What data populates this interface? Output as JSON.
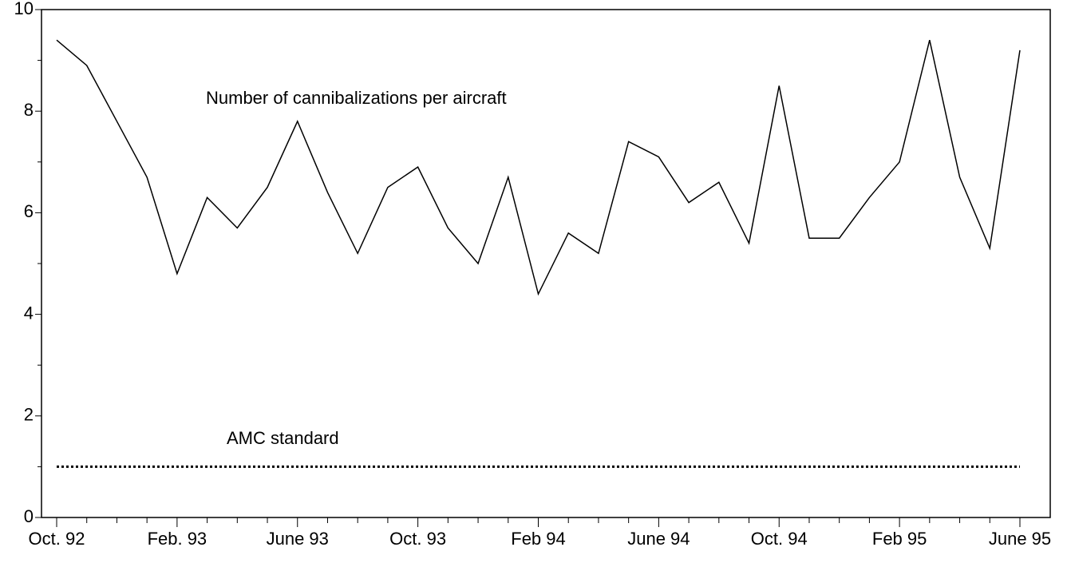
{
  "chart_data": {
    "type": "line",
    "categories": [
      "Oct. 92",
      null,
      null,
      null,
      "Feb. 93",
      null,
      null,
      null,
      "June 93",
      null,
      null,
      null,
      "Oct. 93",
      null,
      null,
      null,
      "Feb 94",
      null,
      null,
      null,
      "June 94",
      null,
      null,
      null,
      "Oct. 94",
      null,
      null,
      null,
      "Feb 95",
      null,
      null,
      null,
      "June 95"
    ],
    "series": [
      {
        "name": "Number of cannibalizations per aircraft",
        "color": "#000000",
        "style": "solid",
        "values": [
          9.4,
          8.9,
          7.8,
          6.7,
          4.8,
          6.3,
          5.7,
          6.5,
          7.8,
          6.4,
          5.2,
          6.5,
          6.9,
          5.7,
          5.0,
          6.7,
          4.4,
          5.6,
          5.2,
          7.4,
          7.1,
          6.2,
          6.6,
          5.4,
          8.5,
          5.5,
          5.5,
          6.3,
          7.0,
          9.4,
          6.7,
          5.3,
          9.2
        ]
      },
      {
        "name": "AMC standard",
        "color": "#000000",
        "style": "dotted",
        "values": [
          1,
          1,
          1,
          1,
          1,
          1,
          1,
          1,
          1,
          1,
          1,
          1,
          1,
          1,
          1,
          1,
          1,
          1,
          1,
          1,
          1,
          1,
          1,
          1,
          1,
          1,
          1,
          1,
          1,
          1,
          1,
          1,
          1
        ]
      }
    ],
    "ylim": [
      0,
      10
    ],
    "yticks": [
      0,
      2,
      4,
      6,
      8,
      10
    ],
    "yminorticks": [
      1,
      3,
      5,
      7,
      9
    ],
    "grid": false
  }
}
